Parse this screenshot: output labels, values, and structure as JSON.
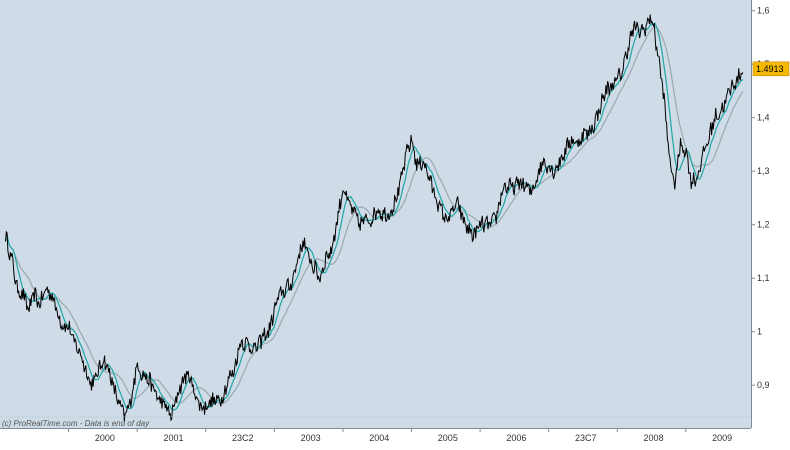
{
  "chart_data": {
    "type": "line",
    "title": "",
    "xlabel": "",
    "ylabel": "",
    "x_tick_labels": [
      "2000",
      "2001",
      "23C2",
      "2003",
      "2004",
      "2005",
      "2006",
      "23C7",
      "2008",
      "2009"
    ],
    "y_tick_labels": [
      "1,6",
      "1,5",
      "1,4",
      "1,3",
      "1,2",
      "1,1",
      "1",
      "0,9"
    ],
    "ylim": [
      0.82,
      1.62
    ],
    "last_price_label": "1.4913",
    "watermark": "(c) ProRealTime.com - Data is end of day",
    "grid": false,
    "colors": {
      "background": "#cfdbe7",
      "axis_background": "#ffffff",
      "price": "#000000",
      "ma_short": "#1fa6a6",
      "ma_long": "#9aa8b0",
      "last_price_badge": "#f5b800"
    },
    "series": [
      {
        "values": [
          [
            1999.08,
            1.18
          ],
          [
            1999.12,
            1.16
          ],
          [
            1999.18,
            1.13
          ],
          [
            1999.25,
            1.08
          ],
          [
            1999.33,
            1.07
          ],
          [
            1999.42,
            1.04
          ],
          [
            1999.5,
            1.07
          ],
          [
            1999.58,
            1.05
          ],
          [
            1999.67,
            1.08
          ],
          [
            1999.75,
            1.07
          ],
          [
            1999.83,
            1.04
          ],
          [
            1999.92,
            1.01
          ],
          [
            2000.0,
            1.01
          ],
          [
            2000.08,
            0.98
          ],
          [
            2000.17,
            0.96
          ],
          [
            2000.25,
            0.93
          ],
          [
            2000.33,
            0.9
          ],
          [
            2000.42,
            0.92
          ],
          [
            2000.5,
            0.95
          ],
          [
            2000.58,
            0.93
          ],
          [
            2000.67,
            0.89
          ],
          [
            2000.75,
            0.86
          ],
          [
            2000.83,
            0.84
          ],
          [
            2000.92,
            0.88
          ],
          [
            2001.0,
            0.94
          ],
          [
            2001.08,
            0.92
          ],
          [
            2001.17,
            0.91
          ],
          [
            2001.25,
            0.89
          ],
          [
            2001.33,
            0.87
          ],
          [
            2001.42,
            0.86
          ],
          [
            2001.5,
            0.84
          ],
          [
            2001.58,
            0.88
          ],
          [
            2001.67,
            0.91
          ],
          [
            2001.75,
            0.92
          ],
          [
            2001.83,
            0.89
          ],
          [
            2001.92,
            0.86
          ],
          [
            2002.0,
            0.86
          ],
          [
            2002.08,
            0.87
          ],
          [
            2002.17,
            0.87
          ],
          [
            2002.25,
            0.88
          ],
          [
            2002.33,
            0.91
          ],
          [
            2002.42,
            0.93
          ],
          [
            2002.5,
            0.98
          ],
          [
            2002.58,
            0.98
          ],
          [
            2002.67,
            0.97
          ],
          [
            2002.75,
            0.97
          ],
          [
            2002.83,
            0.99
          ],
          [
            2002.92,
            1.0
          ],
          [
            2003.0,
            1.04
          ],
          [
            2003.08,
            1.07
          ],
          [
            2003.17,
            1.08
          ],
          [
            2003.25,
            1.09
          ],
          [
            2003.33,
            1.13
          ],
          [
            2003.42,
            1.17
          ],
          [
            2003.5,
            1.14
          ],
          [
            2003.58,
            1.12
          ],
          [
            2003.67,
            1.1
          ],
          [
            2003.75,
            1.14
          ],
          [
            2003.83,
            1.15
          ],
          [
            2003.92,
            1.21
          ],
          [
            2004.0,
            1.27
          ],
          [
            2004.08,
            1.24
          ],
          [
            2004.17,
            1.22
          ],
          [
            2004.25,
            1.2
          ],
          [
            2004.33,
            1.21
          ],
          [
            2004.42,
            1.21
          ],
          [
            2004.5,
            1.23
          ],
          [
            2004.58,
            1.22
          ],
          [
            2004.67,
            1.22
          ],
          [
            2004.75,
            1.24
          ],
          [
            2004.83,
            1.27
          ],
          [
            2004.92,
            1.33
          ],
          [
            2005.0,
            1.36
          ],
          [
            2005.08,
            1.31
          ],
          [
            2005.17,
            1.32
          ],
          [
            2005.25,
            1.29
          ],
          [
            2005.33,
            1.26
          ],
          [
            2005.42,
            1.23
          ],
          [
            2005.5,
            1.21
          ],
          [
            2005.58,
            1.22
          ],
          [
            2005.67,
            1.24
          ],
          [
            2005.75,
            1.21
          ],
          [
            2005.83,
            1.19
          ],
          [
            2005.92,
            1.18
          ],
          [
            2006.0,
            1.2
          ],
          [
            2006.08,
            1.2
          ],
          [
            2006.17,
            1.2
          ],
          [
            2006.25,
            1.22
          ],
          [
            2006.33,
            1.27
          ],
          [
            2006.42,
            1.27
          ],
          [
            2006.5,
            1.27
          ],
          [
            2006.58,
            1.28
          ],
          [
            2006.67,
            1.27
          ],
          [
            2006.75,
            1.26
          ],
          [
            2006.83,
            1.29
          ],
          [
            2006.92,
            1.32
          ],
          [
            2007.0,
            1.31
          ],
          [
            2007.08,
            1.3
          ],
          [
            2007.17,
            1.32
          ],
          [
            2007.25,
            1.34
          ],
          [
            2007.33,
            1.36
          ],
          [
            2007.42,
            1.35
          ],
          [
            2007.5,
            1.37
          ],
          [
            2007.58,
            1.37
          ],
          [
            2007.67,
            1.39
          ],
          [
            2007.75,
            1.42
          ],
          [
            2007.83,
            1.45
          ],
          [
            2007.92,
            1.46
          ],
          [
            2008.0,
            1.47
          ],
          [
            2008.08,
            1.49
          ],
          [
            2008.17,
            1.54
          ],
          [
            2008.25,
            1.57
          ],
          [
            2008.33,
            1.56
          ],
          [
            2008.42,
            1.57
          ],
          [
            2008.5,
            1.59
          ],
          [
            2008.58,
            1.53
          ],
          [
            2008.67,
            1.45
          ],
          [
            2008.75,
            1.34
          ],
          [
            2008.83,
            1.27
          ],
          [
            2008.92,
            1.35
          ],
          [
            2009.0,
            1.34
          ],
          [
            2009.08,
            1.28
          ],
          [
            2009.17,
            1.29
          ],
          [
            2009.25,
            1.33
          ],
          [
            2009.33,
            1.36
          ],
          [
            2009.42,
            1.4
          ],
          [
            2009.5,
            1.41
          ],
          [
            2009.58,
            1.43
          ],
          [
            2009.67,
            1.46
          ],
          [
            2009.75,
            1.47
          ],
          [
            2009.83,
            1.49
          ]
        ]
      }
    ]
  }
}
